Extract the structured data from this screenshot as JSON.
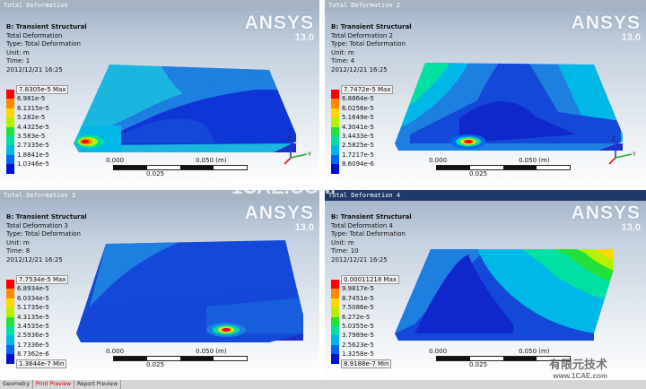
{
  "logo": {
    "name": "ANSYS",
    "version": "13.0"
  },
  "legend_colors": [
    "#ff0000",
    "#ff8a00",
    "#ffd800",
    "#b7f000",
    "#24e03a",
    "#00e0a2",
    "#00b8e8",
    "#0068f0",
    "#0010d0"
  ],
  "panels": [
    {
      "title": "Total Deformation",
      "active": false,
      "info": {
        "analysis": "B: Transient Structural",
        "name": "Total Deformation",
        "type": "Type: Total Deformation",
        "unit": "Unit: m",
        "time": "Time: 1",
        "date": "2012/12/21 16:25"
      },
      "legend": {
        "max": "7.8305e-5 Max",
        "levels": [
          "6.981e-5",
          "6.1315e-5",
          "5.282e-5",
          "4.4325e-5",
          "3.583e-5",
          "2.7335e-5",
          "1.8841e-5",
          "1.0346e-5"
        ],
        "min": ""
      }
    },
    {
      "title": "Total Deformation 2",
      "active": false,
      "info": {
        "analysis": "B: Transient Structural",
        "name": "Total Deformation 2",
        "type": "Type: Total Deformation",
        "unit": "Unit: m",
        "time": "Time: 4",
        "date": "2012/12/21 16:25"
      },
      "legend": {
        "max": "7.7472e-5 Max",
        "levels": [
          "6.8864e-5",
          "6.0256e-5",
          "5.1649e-5",
          "4.3041e-5",
          "3.4433e-5",
          "2.5825e-5",
          "1.7217e-5",
          "8.6094e-6"
        ],
        "min": ""
      }
    },
    {
      "title": "Total Deformation 3",
      "active": false,
      "info": {
        "analysis": "B: Transient Structural",
        "name": "Total Deformation 3",
        "type": "Type: Total Deformation",
        "unit": "Unit: m",
        "time": "Time: 8",
        "date": "2012/12/21 16:25"
      },
      "legend": {
        "max": "7.7534e-5 Max",
        "levels": [
          "6.8934e-5",
          "6.0334e-5",
          "5.1735e-5",
          "4.3135e-5",
          "3.4535e-5",
          "2.5936e-5",
          "1.7336e-5",
          "8.7362e-6"
        ],
        "min": "1.3644e-7 Min"
      }
    },
    {
      "title": "Total Deformation 4",
      "active": true,
      "info": {
        "analysis": "B: Transient Structural",
        "name": "Total Deformation 4",
        "type": "Type: Total Deformation",
        "unit": "Unit: m",
        "time": "Time: 10",
        "date": "2012/12/21 16:25"
      },
      "legend": {
        "max": "0.00011218 Max",
        "levels": [
          "9.9817e-5",
          "8.7451e-5",
          "7.5086e-5",
          "6.272e-5",
          "5.0355e-5",
          "3.7989e-5",
          "2.5623e-5",
          "1.3258e-5"
        ],
        "min": "8.9188e-7 Min"
      }
    }
  ],
  "scale_bar": {
    "start": "0.000",
    "end": "0.050  (m)",
    "mid": "0.025"
  },
  "triad": {
    "z": "Z",
    "y": "Y",
    "x": "X"
  },
  "statusbar": {
    "geometry": "Geometry",
    "print_preview": "Print Preview",
    "report_preview": "Report Preview"
  },
  "watermark": {
    "center": "1CAE.COM",
    "corner": "有限元技术",
    "corner_url": "www.1CAE.com"
  }
}
